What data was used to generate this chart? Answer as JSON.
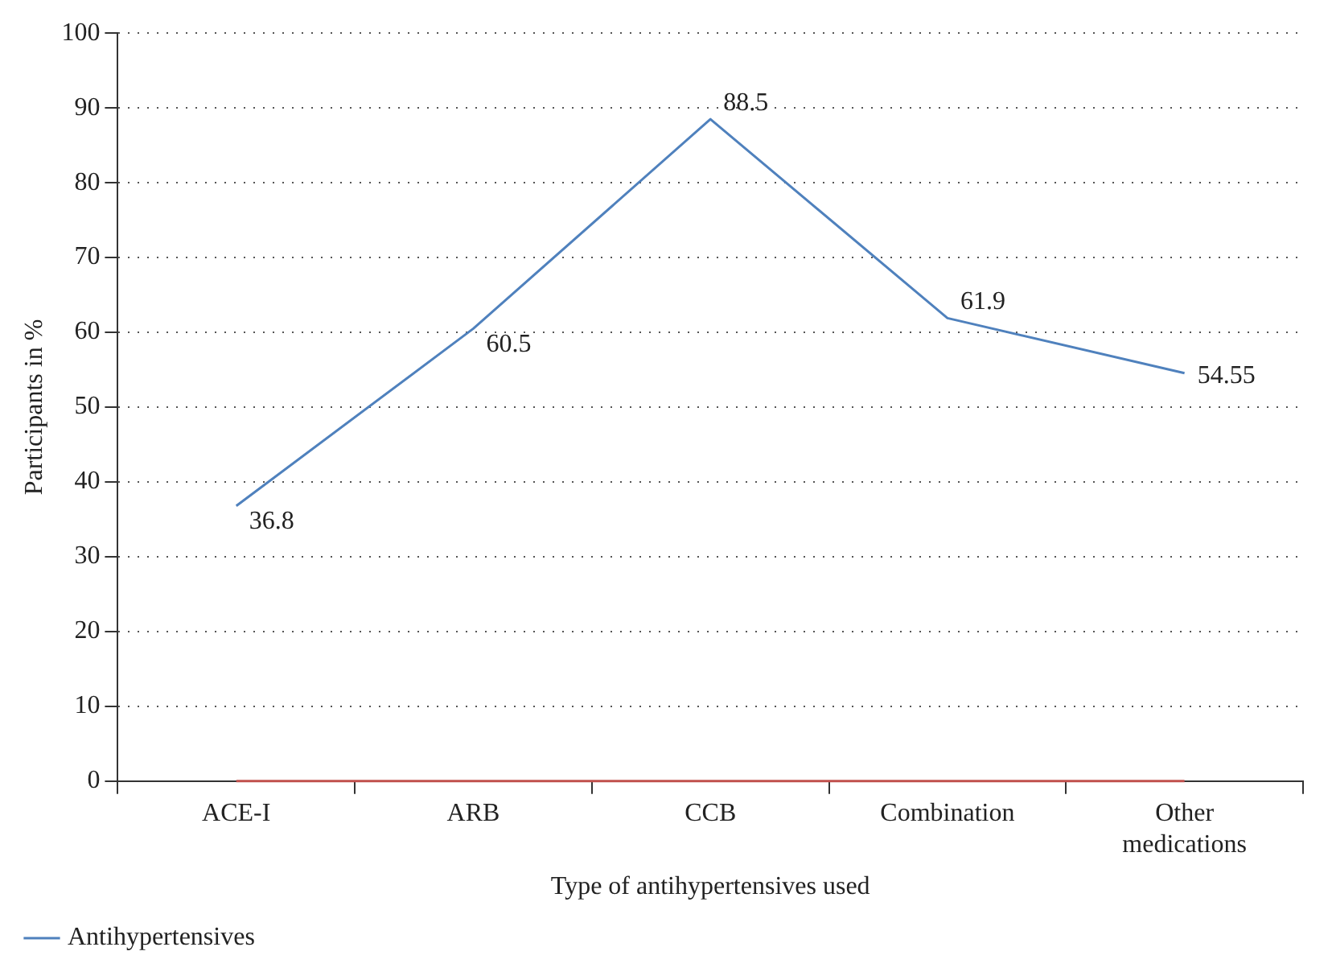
{
  "chart_data": {
    "type": "line",
    "xlabel": "Type of antihypertensives used",
    "ylabel": "Participants in %",
    "categories": [
      "ACE-I",
      "ARB",
      "CCB",
      "Combination",
      "Other medications"
    ],
    "series": [
      {
        "name": "Antihypertensives",
        "color": "#4f81bd",
        "values": [
          36.8,
          60.5,
          88.5,
          61.9,
          54.55
        ],
        "value_labels": [
          "36.8",
          "60.5",
          "88.5",
          "61.9",
          "54.55"
        ]
      },
      {
        "color": "#c0504d",
        "values": [
          0,
          0,
          0,
          0,
          0
        ]
      }
    ],
    "ylim": [
      0,
      100
    ],
    "yticks": [
      0,
      10,
      20,
      30,
      40,
      50,
      60,
      70,
      80,
      90,
      100
    ],
    "grid": "y",
    "legend": "bottom left",
    "marker": "none",
    "line_style": "solid"
  }
}
